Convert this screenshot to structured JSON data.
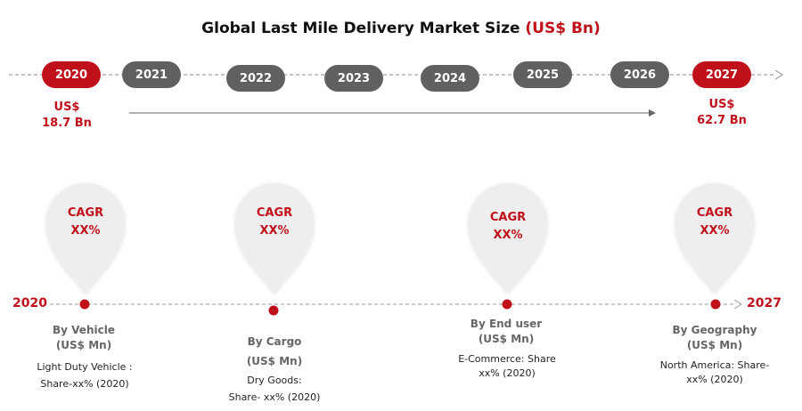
{
  "title": {
    "main": "Global Last Mile Delivery Market Size ",
    "accent": "(US$ Bn)"
  },
  "timeline": {
    "years": [
      "2020",
      "2021",
      "2022",
      "2023",
      "2024",
      "2025",
      "2026",
      "2027"
    ],
    "start_value": {
      "line1": "US$",
      "line2": "18.7 Bn"
    },
    "end_value": {
      "line1": "US$",
      "line2": "62.7 Bn"
    }
  },
  "segments": {
    "start_year": "2020",
    "end_year": "2027",
    "items": [
      {
        "cagr_label": "CAGR",
        "cagr_value": "XX%",
        "name": "By Vehicle",
        "unit": "(US$ Mn)",
        "desc1": "Light Duty Vehicle :",
        "desc2": "Share-xx% (2020)"
      },
      {
        "cagr_label": "CAGR",
        "cagr_value": "XX%",
        "name": "By Cargo",
        "unit": "(US$ Mn)",
        "desc1": "Dry Goods:",
        "desc2": "Share- xx% (2020)"
      },
      {
        "cagr_label": "CAGR",
        "cagr_value": "XX%",
        "name": "By End user",
        "unit": "(US$ Mn)",
        "desc1": "E-Commerce: Share",
        "desc2": "xx% (2020)"
      },
      {
        "cagr_label": "CAGR",
        "cagr_value": "XX%",
        "name": "By Geography",
        "unit": "(US$ Mn)",
        "desc1": "North America: Share-",
        "desc2": "xx%  (2020)"
      }
    ]
  },
  "colors": {
    "accent": "#c0101a",
    "pill_grey": "#606060",
    "pin_grey": "#eeeeee",
    "line_grey": "#999999"
  }
}
